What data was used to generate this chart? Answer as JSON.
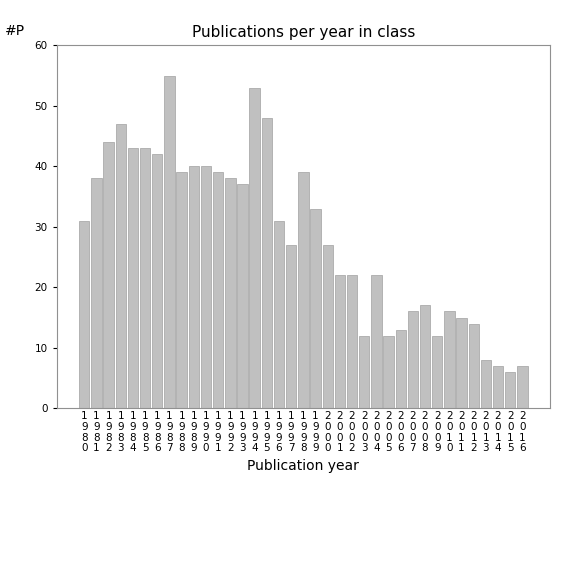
{
  "title": "Publications per year in class",
  "xlabel": "Publication year",
  "ylabel": "#P",
  "years": [
    "1980",
    "1981",
    "1982",
    "1983",
    "1984",
    "1985",
    "1986",
    "1987",
    "1988",
    "1989",
    "1990",
    "1991",
    "1992",
    "1993",
    "1994",
    "1995",
    "1996",
    "1997",
    "1998",
    "1999",
    "2000",
    "2001",
    "2002",
    "2003",
    "2004",
    "2005",
    "2006",
    "2007",
    "2008",
    "2009",
    "2010",
    "2011",
    "2012",
    "2013",
    "2014",
    "2015",
    "2016"
  ],
  "values": [
    31,
    38,
    44,
    47,
    43,
    43,
    42,
    55,
    39,
    40,
    40,
    39,
    38,
    37,
    53,
    48,
    31,
    27,
    39,
    33,
    27,
    22,
    22,
    12,
    22,
    12,
    13,
    16,
    17,
    12,
    16,
    15,
    14,
    8,
    7,
    6,
    7
  ],
  "bar_color": "#c0c0c0",
  "bar_edgecolor": "#a0a0a0",
  "ylim": [
    0,
    60
  ],
  "yticks": [
    0,
    10,
    20,
    30,
    40,
    50,
    60
  ],
  "background_color": "#ffffff",
  "title_fontsize": 11,
  "axis_fontsize": 10,
  "tick_fontsize": 7.5
}
